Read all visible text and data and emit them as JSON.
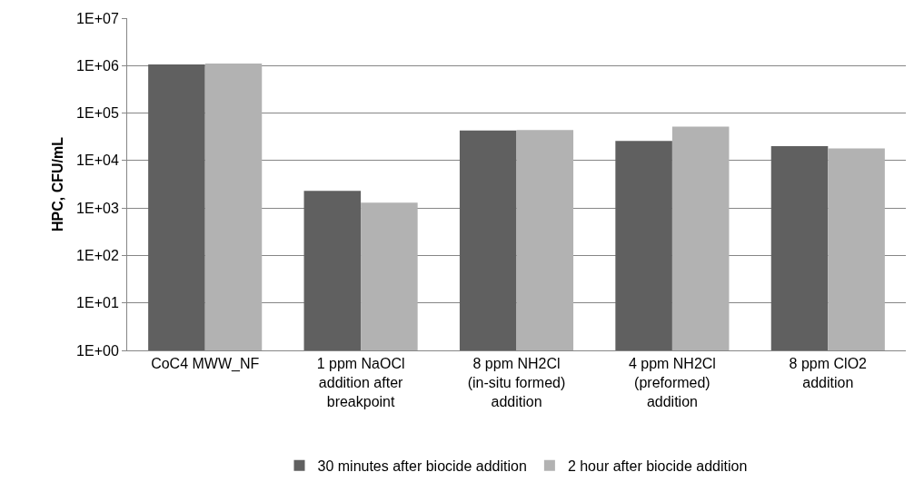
{
  "chart_data": {
    "type": "bar",
    "ylabel": "HPC, CFU/mL",
    "categories": [
      "CoC4 MWW_NF",
      "1 ppm NaOCl\naddition after\nbreakpoint",
      "8 ppm NH2Cl\n(in-situ formed)\naddition",
      "4 ppm NH2Cl\n(preformed)\naddition",
      "8 ppm ClO2\naddition"
    ],
    "series": [
      {
        "name": "30 minutes after biocide addition",
        "color": "#606060",
        "values": [
          1060000,
          2300,
          43000,
          26000,
          20000
        ]
      },
      {
        "name": "2 hour after biocide addition",
        "color": "#b2b2b2",
        "values": [
          1100000,
          1300,
          44000,
          52000,
          18000
        ]
      }
    ],
    "log": true,
    "ylim": [
      1,
      10000000
    ],
    "yticks": [
      {
        "value": 1,
        "label": "1E+00"
      },
      {
        "value": 10,
        "label": "1E+01"
      },
      {
        "value": 100,
        "label": "1E+02"
      },
      {
        "value": 1000,
        "label": "1E+03"
      },
      {
        "value": 10000,
        "label": "1E+04"
      },
      {
        "value": 100000,
        "label": "1E+05"
      },
      {
        "value": 1000000,
        "label": "1E+06"
      },
      {
        "value": 10000000,
        "label": "1E+07"
      }
    ],
    "grid": "y",
    "legend": "bottom"
  }
}
